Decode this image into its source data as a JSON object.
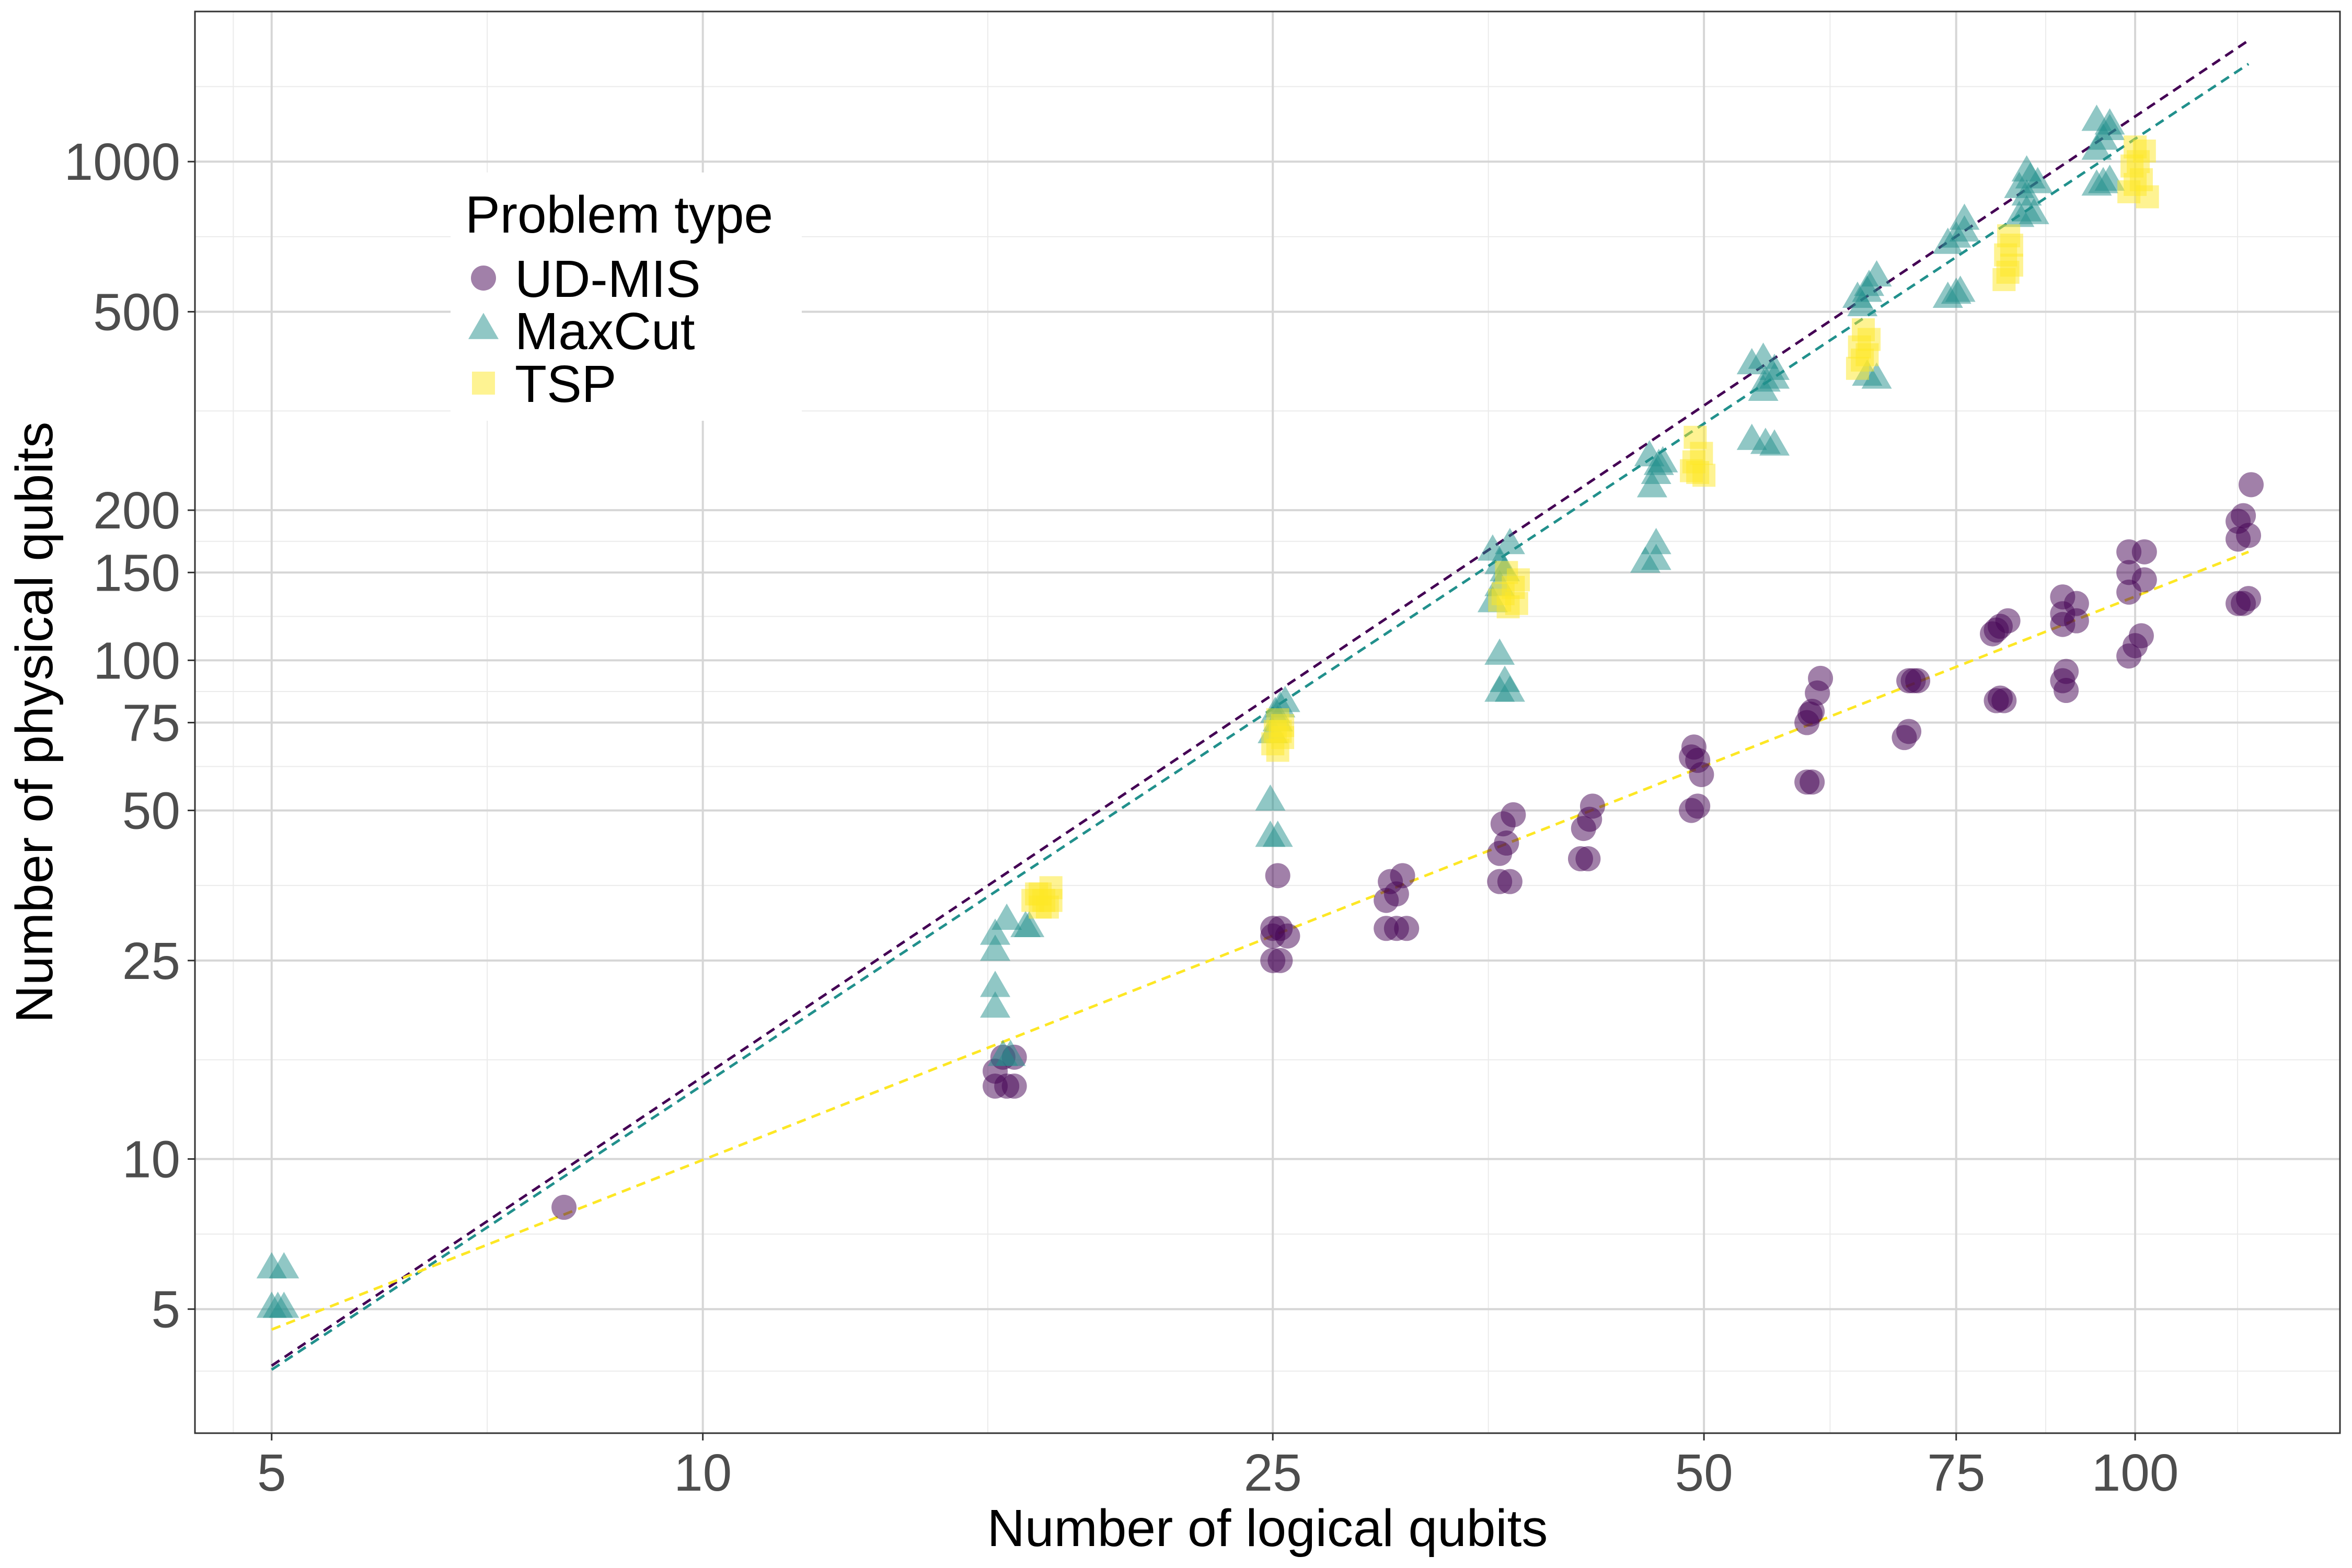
{
  "chart_data": {
    "type": "scatter",
    "xlabel": "Number of logical qubits",
    "ylabel": "Number of physical qubits",
    "x_scale": "log",
    "y_scale": "log",
    "xlim": [
      4.42,
      139
    ],
    "ylim": [
      2.82,
      2000
    ],
    "x_ticks": [
      5,
      10,
      25,
      50,
      75,
      100
    ],
    "x_tick_labels": [
      "5",
      "10",
      "25",
      "50",
      "75",
      "100"
    ],
    "y_ticks": [
      5,
      10,
      25,
      50,
      75,
      100,
      150,
      200,
      500,
      1000
    ],
    "y_tick_labels": [
      "5",
      "10",
      "25",
      "50",
      "75",
      "100",
      "150",
      "200",
      "500",
      "1000"
    ],
    "grid": true,
    "legend": {
      "title": "Problem type",
      "position": "top-left",
      "entries": [
        "UD-MIS",
        "MaxCut",
        "TSP"
      ]
    },
    "series": [
      {
        "name": "UD-MIS",
        "marker": "circle",
        "color": "#440154",
        "points": [
          [
            8,
            8
          ],
          [
            16,
            14
          ],
          [
            16,
            15
          ],
          [
            16.3,
            14
          ],
          [
            16.5,
            14
          ],
          [
            16.2,
            16
          ],
          [
            16.5,
            16
          ],
          [
            25,
            25
          ],
          [
            25.3,
            25
          ],
          [
            25,
            28
          ],
          [
            25.3,
            29
          ],
          [
            25.6,
            28
          ],
          [
            25,
            29
          ],
          [
            25.2,
            37
          ],
          [
            30,
            29
          ],
          [
            30.5,
            29
          ],
          [
            31,
            29
          ],
          [
            30,
            33
          ],
          [
            30.5,
            34
          ],
          [
            30.2,
            36
          ],
          [
            30.8,
            37
          ],
          [
            36,
            36
          ],
          [
            36.6,
            36
          ],
          [
            36,
            41
          ],
          [
            36.2,
            47
          ],
          [
            36.8,
            49
          ],
          [
            36.4,
            43
          ],
          [
            41,
            40
          ],
          [
            41.5,
            40
          ],
          [
            41.2,
            46
          ],
          [
            41.6,
            48
          ],
          [
            41.8,
            51
          ],
          [
            49,
            50
          ],
          [
            49.5,
            51
          ],
          [
            49,
            64
          ],
          [
            49.5,
            63
          ],
          [
            49.8,
            59
          ],
          [
            49.2,
            67
          ],
          [
            59,
            57
          ],
          [
            59.5,
            57
          ],
          [
            59,
            75
          ],
          [
            59.5,
            79
          ],
          [
            60,
            86
          ],
          [
            60.3,
            92
          ],
          [
            59.3,
            78
          ],
          [
            69,
            70
          ],
          [
            69.5,
            72
          ],
          [
            69.5,
            91
          ],
          [
            70,
            91
          ],
          [
            70.5,
            91
          ],
          [
            80,
            83
          ],
          [
            80.5,
            84
          ],
          [
            81,
            83
          ],
          [
            79.5,
            113
          ],
          [
            80,
            115
          ],
          [
            80.5,
            117
          ],
          [
            81.5,
            120
          ],
          [
            89,
            91
          ],
          [
            89.5,
            87
          ],
          [
            89.5,
            95
          ],
          [
            89,
            118
          ],
          [
            89,
            124
          ],
          [
            89,
            134
          ],
          [
            91,
            130
          ],
          [
            91,
            120
          ],
          [
            99,
            102
          ],
          [
            100,
            107
          ],
          [
            101,
            112
          ],
          [
            99,
            137
          ],
          [
            99,
            150
          ],
          [
            99,
            165
          ],
          [
            101.5,
            145
          ],
          [
            101.5,
            165
          ],
          [
            118,
            130
          ],
          [
            119,
            130
          ],
          [
            120,
            133
          ],
          [
            118,
            175
          ],
          [
            118,
            190
          ],
          [
            119,
            195
          ],
          [
            120,
            178
          ],
          [
            120.5,
            225
          ]
        ]
      },
      {
        "name": "MaxCut",
        "marker": "triangle",
        "color": "#21908C",
        "points": [
          [
            5,
            5
          ],
          [
            5.05,
            5
          ],
          [
            5.1,
            5
          ],
          [
            5,
            6
          ],
          [
            5.1,
            6
          ],
          [
            16,
            20
          ],
          [
            16,
            22
          ],
          [
            16,
            26
          ],
          [
            16,
            28
          ],
          [
            16.2,
            16
          ],
          [
            16.4,
            16
          ],
          [
            16.3,
            30
          ],
          [
            16.8,
            29
          ],
          [
            16.9,
            29
          ],
          [
            24.9,
            44
          ],
          [
            25.2,
            44
          ],
          [
            24.9,
            52
          ],
          [
            25,
            71
          ],
          [
            25.2,
            75
          ],
          [
            25.3,
            80
          ],
          [
            25.5,
            82
          ],
          [
            25.1,
            78
          ],
          [
            36,
            86
          ],
          [
            36.3,
            90
          ],
          [
            36.6,
            86
          ],
          [
            36,
            102
          ],
          [
            35.6,
            130
          ],
          [
            36,
            140
          ],
          [
            36.3,
            150
          ],
          [
            35.6,
            165
          ],
          [
            36.6,
            170
          ],
          [
            36,
            155
          ],
          [
            45.5,
            156
          ],
          [
            46.3,
            158
          ],
          [
            46.3,
            170
          ],
          [
            46,
            221
          ],
          [
            46.3,
            235
          ],
          [
            46.5,
            245
          ],
          [
            45.8,
            255
          ],
          [
            46.8,
            248
          ],
          [
            54,
            275
          ],
          [
            55.2,
            270
          ],
          [
            56,
            268
          ],
          [
            55,
            345
          ],
          [
            55.2,
            360
          ],
          [
            56,
            365
          ],
          [
            54,
            390
          ],
          [
            55,
            400
          ],
          [
            56,
            380
          ],
          [
            65,
            370
          ],
          [
            66,
            365
          ],
          [
            64,
            530
          ],
          [
            65,
            545
          ],
          [
            65.2,
            560
          ],
          [
            66,
            585
          ],
          [
            64.5,
            510
          ],
          [
            74,
            530
          ],
          [
            75,
            540
          ],
          [
            75.5,
            545
          ],
          [
            74,
            680
          ],
          [
            75,
            700
          ],
          [
            76,
            720
          ],
          [
            76,
            760
          ],
          [
            83,
            770
          ],
          [
            84,
            790
          ],
          [
            85,
            780
          ],
          [
            84,
            850
          ],
          [
            83,
            880
          ],
          [
            84.5,
            920
          ],
          [
            85.5,
            900
          ],
          [
            84,
            950
          ],
          [
            94,
            890
          ],
          [
            95,
            900
          ],
          [
            96,
            910
          ],
          [
            94,
            1050
          ],
          [
            95,
            1100
          ],
          [
            96,
            1150
          ],
          [
            94,
            1200
          ],
          [
            96,
            1180
          ]
        ]
      },
      {
        "name": "TSP",
        "marker": "square",
        "color": "#FDE725",
        "points": [
          [
            17,
            33
          ],
          [
            17.2,
            32
          ],
          [
            17.4,
            32
          ],
          [
            17.5,
            33
          ],
          [
            17.2,
            34
          ],
          [
            17.5,
            35
          ],
          [
            17.1,
            34
          ],
          [
            17.3,
            33
          ],
          [
            25,
            68
          ],
          [
            25.2,
            66
          ],
          [
            25.4,
            70
          ],
          [
            25.1,
            72
          ],
          [
            25.4,
            74
          ],
          [
            25.2,
            76
          ],
          [
            25.3,
            72
          ],
          [
            36,
            132
          ],
          [
            36.5,
            128
          ],
          [
            37,
            130
          ],
          [
            36.2,
            136
          ],
          [
            36.8,
            140
          ],
          [
            37.1,
            145
          ],
          [
            36.4,
            150
          ],
          [
            49,
            240
          ],
          [
            49.5,
            238
          ],
          [
            50,
            235
          ],
          [
            49.2,
            250
          ],
          [
            49.8,
            260
          ],
          [
            49.3,
            280
          ],
          [
            64,
            385
          ],
          [
            64.5,
            400
          ],
          [
            65,
            410
          ],
          [
            64.2,
            425
          ],
          [
            65.2,
            440
          ],
          [
            64.6,
            460
          ],
          [
            81,
            580
          ],
          [
            81.5,
            600
          ],
          [
            82,
            620
          ],
          [
            81.2,
            650
          ],
          [
            82,
            680
          ],
          [
            81.6,
            710
          ],
          [
            99,
            870
          ],
          [
            100,
            900
          ],
          [
            101,
            920
          ],
          [
            102,
            850
          ],
          [
            99.5,
            980
          ],
          [
            100.5,
            1000
          ],
          [
            101.5,
            1050
          ],
          [
            100,
            1070
          ]
        ]
      }
    ],
    "fit_lines": [
      {
        "series": "UD-MIS",
        "color": "#440154",
        "from": [
          5,
          3.85
        ],
        "to": [
          120,
          1750
        ]
      },
      {
        "series": "MaxCut",
        "color": "#21908C",
        "from": [
          5,
          3.78
        ],
        "to": [
          120,
          1570
        ]
      },
      {
        "series": "TSP",
        "color": "#FDE725",
        "from": [
          5,
          4.55
        ],
        "to": [
          120,
          165
        ]
      }
    ]
  }
}
